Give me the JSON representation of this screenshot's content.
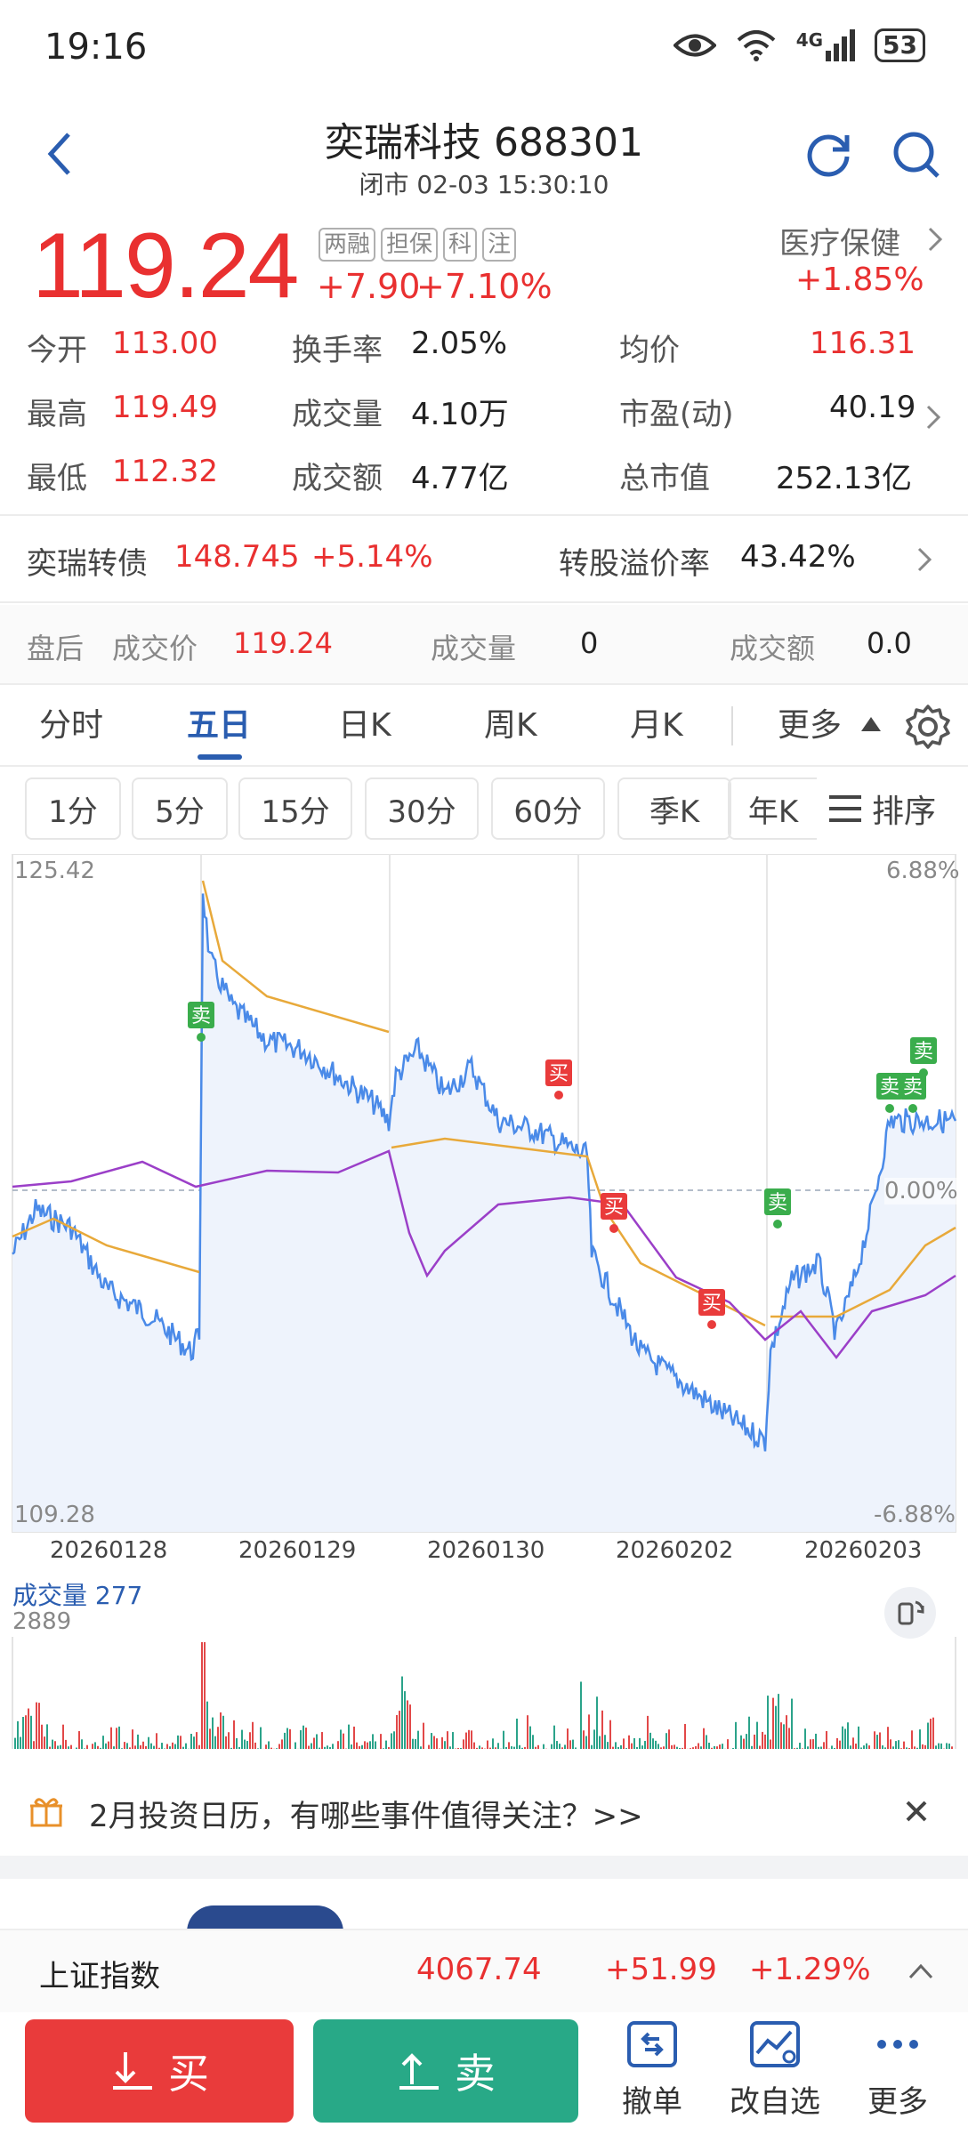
{
  "status": {
    "time": "19:16",
    "network": "4G",
    "battery": "53"
  },
  "header": {
    "title": "奕瑞科技 688301",
    "subtitle": "闭市 02-03 15:30:10"
  },
  "quote": {
    "price": "119.24",
    "change": "+7.90",
    "change_pct": "+7.10%",
    "tags": [
      "两融",
      "担保",
      "科",
      "注"
    ],
    "sector": "医疗保健",
    "sector_pct": "+1.85%"
  },
  "stats": {
    "open_label": "今开",
    "open": "113.00",
    "turnover_label": "换手率",
    "turnover": "2.05%",
    "avg_label": "均价",
    "avg": "116.31",
    "high_label": "最高",
    "high": "119.49",
    "volume_label": "成交量",
    "volume": "4.10万",
    "pe_label": "市盈(动)",
    "pe": "40.19",
    "low_label": "最低",
    "low": "112.32",
    "amount_label": "成交额",
    "amount": "4.77亿",
    "mcap_label": "总市值",
    "mcap": "252.13亿"
  },
  "bond": {
    "name": "奕瑞转债",
    "price": "148.745",
    "pct": "+5.14%",
    "premium_label": "转股溢价率",
    "premium": "43.42%"
  },
  "after_hours": {
    "label": "盘后",
    "price_label": "成交价",
    "price": "119.24",
    "vol_label": "成交量",
    "vol": "0",
    "amt_label": "成交额",
    "amt": "0.0"
  },
  "tabs": [
    "分时",
    "五日",
    "日K",
    "周K",
    "月K",
    "更多"
  ],
  "periods": [
    "1分",
    "5分",
    "15分",
    "30分",
    "60分",
    "季K",
    "年K"
  ],
  "sort_label": "排序",
  "chart": {
    "y_top": "125.42",
    "y_bottom": "109.28",
    "pct_top": "6.88%",
    "pct_mid": "0.00%",
    "pct_bottom": "-6.88%",
    "dates": [
      "20260128",
      "20260129",
      "20260130",
      "20260202",
      "20260203"
    ],
    "volume_label": "成交量 277",
    "volume_max": "2889",
    "buy_label": "买",
    "sell_label": "卖"
  },
  "banner": {
    "text": "2月投资日历，有哪些事件值得关注？>>"
  },
  "index": {
    "name": "上证指数",
    "value": "4067.74",
    "change": "+51.99",
    "pct": "+1.29%"
  },
  "actions": {
    "buy": "买",
    "sell": "卖",
    "cancel": "撤单",
    "watch": "改自选",
    "more": "更多"
  },
  "colors": {
    "up": "#e93030",
    "down": "#1aa36b",
    "price_line": "#4a8ae8",
    "avg_line": "#e8a93a",
    "index_line": "#9b3fc8"
  }
}
